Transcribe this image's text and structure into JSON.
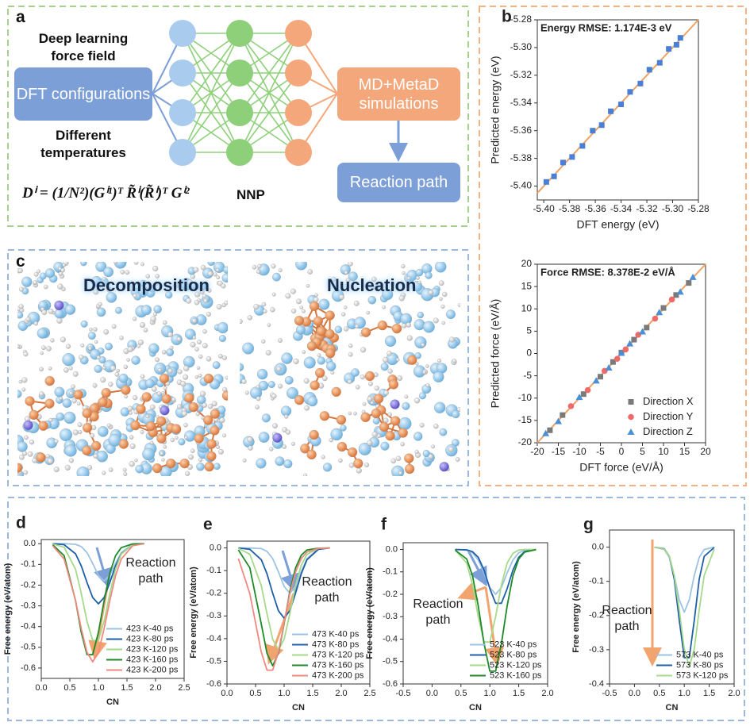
{
  "panel_a": {
    "label": "a",
    "title": "Deep learning force field",
    "input": "DFT configurations",
    "condition": "Different temperatures",
    "simulation": "MD+MetaD simulations",
    "output": "Reaction path",
    "formula": "Dⁱ = (1/N²)(Gⁱ¹)ᵀ R̃ⁱ(R̃ⁱ)ᵀ Gⁱ²",
    "model": "NNP"
  },
  "panel_c": {
    "label": "c",
    "left": "Decomposition",
    "right": "Nucleation"
  },
  "chart_data": [
    {
      "type": "scatter",
      "panel_label": "b",
      "title": "Energy RMSE: 1.174E-3 eV",
      "x_label": "DFT energy (eV)",
      "y_label": "Predicted energy (eV)",
      "xlim": [
        -5.405,
        -5.28
      ],
      "ylim": [
        -5.41,
        -5.28
      ],
      "xticks": [
        {
          "value": -5.4,
          "label": "-5.40"
        },
        -5.38,
        -5.36,
        -5.34,
        -5.32,
        {
          "value": -5.3,
          "label": "-5.30"
        },
        -5.28
      ],
      "yticks": [
        {
          "value": -5.4,
          "label": "-5.40"
        },
        -5.38,
        -5.36,
        -5.34,
        -5.32,
        {
          "value": -5.3,
          "label": "-5.30"
        },
        -5.28
      ],
      "diagonal": true,
      "diagonal_color": "#f0a060",
      "series": [
        {
          "color": "#4a7fd6",
          "marker": "square",
          "x": [
            -5.398,
            -5.392,
            -5.385,
            -5.378,
            -5.37,
            -5.362,
            -5.355,
            -5.348,
            -5.34,
            -5.333,
            -5.325,
            -5.318,
            -5.31,
            -5.303,
            -5.297,
            -5.294
          ],
          "values": [
            -5.397,
            -5.393,
            -5.383,
            -5.379,
            -5.371,
            -5.36,
            -5.356,
            -5.346,
            -5.341,
            -5.332,
            -5.326,
            -5.316,
            -5.311,
            -5.301,
            -5.298,
            -5.293
          ]
        }
      ]
    },
    {
      "type": "scatter",
      "title": "Force RMSE: 8.378E-2 eV/Å",
      "x_label": "DFT force (eV/Å)",
      "y_label": "Predicted force (eV/Å)",
      "xlim": [
        -20,
        20
      ],
      "ylim": [
        -20,
        20
      ],
      "xticks": [
        -20,
        -15,
        -10,
        -5,
        0,
        5,
        10,
        15,
        20
      ],
      "yticks": [
        -20,
        -15,
        -10,
        -5,
        0,
        5,
        10,
        15,
        20
      ],
      "diagonal": true,
      "diagonal_color": "#f0a060",
      "legend": "lower right",
      "series": [
        {
          "name": "Direction X",
          "color": "#7a7a7a",
          "marker": "square",
          "x": [
            -17,
            -14,
            -9,
            -5,
            -2,
            0,
            3,
            6,
            10,
            13,
            16
          ],
          "values": [
            -17.2,
            -13.8,
            -9.1,
            -5.2,
            -1.9,
            0.2,
            3.1,
            5.8,
            10.2,
            13.1,
            15.8
          ]
        },
        {
          "name": "Direction Y",
          "color": "#f06a6a",
          "marker": "circle",
          "x": [
            -12,
            -8,
            -4,
            -1,
            1,
            4,
            8,
            12
          ],
          "values": [
            -11.8,
            -8.2,
            -3.9,
            -1.2,
            0.9,
            4.2,
            7.8,
            12.1
          ]
        },
        {
          "name": "Direction Z",
          "color": "#4a90d9",
          "marker": "triangle",
          "x": [
            -18,
            -15,
            -10,
            -6,
            -3,
            0,
            2,
            5,
            9,
            14,
            17
          ],
          "values": [
            -17.9,
            -15.2,
            -9.8,
            -6.1,
            -3.2,
            0.1,
            2.2,
            4.9,
            9.2,
            13.8,
            17.1
          ]
        }
      ]
    },
    {
      "type": "line",
      "panel_label": "d",
      "x_label": "CN",
      "y_label": "Free energy (eV/atom)",
      "annotation": "Reaction path",
      "legend": "lower right",
      "xlim": [
        0,
        2.5
      ],
      "ylim": [
        -0.65,
        0.02
      ],
      "xticks": [
        {
          "value": 0,
          "label": "0.0"
        },
        0.5,
        {
          "value": 1,
          "label": "1.0"
        },
        1.5,
        {
          "value": 2,
          "label": "2.0"
        },
        2.5
      ],
      "yticks": [
        {
          "value": 0,
          "label": "0.0"
        },
        -0.1,
        -0.2,
        -0.3,
        -0.4,
        -0.5,
        -0.6
      ],
      "x": [
        0.2,
        0.4,
        0.6,
        0.7,
        0.8,
        0.9,
        1.0,
        1.1,
        1.2,
        1.3,
        1.4,
        1.6,
        1.8
      ],
      "series": [
        {
          "name": "423 K-40 ps",
          "color": "#9cc3e4",
          "values": [
            0,
            0,
            -0.003,
            -0.014,
            -0.043,
            -0.095,
            -0.153,
            -0.18,
            -0.153,
            -0.095,
            -0.043,
            -0.003,
            0
          ]
        },
        {
          "name": "423 K-80 ps",
          "color": "#1f5fa8",
          "values": [
            0,
            -0.005,
            -0.049,
            -0.107,
            -0.187,
            -0.26,
            -0.29,
            -0.26,
            -0.187,
            -0.107,
            -0.049,
            -0.005,
            0
          ]
        },
        {
          "name": "423 K-120 ps",
          "color": "#a6d98a",
          "values": [
            -0.001,
            -0.017,
            -0.123,
            -0.24,
            -0.374,
            -0.467,
            -0.467,
            -0.374,
            -0.24,
            -0.123,
            -0.05,
            -0.004,
            0
          ]
        },
        {
          "name": "423 K-160 ps",
          "color": "#1e8a2a",
          "values": [
            -0.005,
            -0.058,
            -0.275,
            -0.428,
            -0.535,
            -0.535,
            -0.428,
            -0.275,
            -0.141,
            -0.058,
            -0.019,
            -0.001,
            0
          ]
        },
        {
          "name": "423 K-200 ps",
          "color": "#f08a80",
          "values": [
            -0.01,
            -0.074,
            -0.274,
            -0.41,
            -0.524,
            -0.57,
            -0.524,
            -0.41,
            -0.274,
            -0.154,
            -0.074,
            -0.01,
            0
          ]
        }
      ]
    },
    {
      "type": "line",
      "panel_label": "e",
      "x_label": "CN",
      "y_label": "Free energy (eV/atom)",
      "annotation": "Reaction path",
      "legend": "lower right",
      "xlim": [
        0,
        2.5
      ],
      "ylim": [
        -0.6,
        0.03
      ],
      "xticks": [
        {
          "value": 0,
          "label": "0.0"
        },
        0.5,
        {
          "value": 1,
          "label": "1.0"
        },
        1.5,
        {
          "value": 2,
          "label": "2.0"
        },
        2.5
      ],
      "yticks": [
        {
          "value": 0,
          "label": "0.0"
        },
        -0.1,
        -0.2,
        -0.3,
        -0.4,
        -0.5,
        -0.6
      ],
      "x": [
        0.2,
        0.4,
        0.6,
        0.7,
        0.8,
        0.9,
        1.0,
        1.1,
        1.2,
        1.3,
        1.4,
        1.6,
        1.8
      ],
      "series": [
        {
          "name": "473 K-40 ps",
          "color": "#9cc3e4",
          "values": [
            0,
            0,
            -0.003,
            -0.015,
            -0.047,
            -0.105,
            -0.17,
            -0.2,
            -0.17,
            -0.105,
            -0.047,
            -0.003,
            0
          ]
        },
        {
          "name": "473 K-80 ps",
          "color": "#1f5fa8",
          "values": [
            0,
            -0.006,
            -0.052,
            -0.114,
            -0.2,
            -0.277,
            -0.31,
            -0.277,
            -0.2,
            -0.114,
            -0.052,
            -0.006,
            0
          ]
        },
        {
          "name": "473 K-120 ps",
          "color": "#a6d98a",
          "values": [
            -0.002,
            -0.028,
            -0.166,
            -0.29,
            -0.403,
            -0.45,
            -0.403,
            -0.29,
            -0.166,
            -0.076,
            -0.028,
            -0.002,
            0
          ]
        },
        {
          "name": "473 K-160 ps",
          "color": "#1e8a2a",
          "values": [
            -0.009,
            -0.088,
            -0.335,
            -0.465,
            -0.52,
            -0.465,
            -0.335,
            -0.191,
            -0.088,
            -0.032,
            -0.009,
            -0.001,
            0
          ]
        },
        {
          "name": "473 K-200 ps",
          "color": "#f08a80",
          "values": [
            -0.047,
            -0.202,
            -0.459,
            -0.539,
            -0.539,
            -0.459,
            -0.33,
            -0.202,
            -0.106,
            -0.047,
            -0.018,
            -0.002,
            0
          ]
        }
      ]
    },
    {
      "type": "line",
      "panel_label": "f",
      "x_label": "CN",
      "y_label": "Free energy (eV/atom)",
      "annotation": "Reaction path",
      "legend": "lower right",
      "xlim": [
        -0.5,
        2.0
      ],
      "ylim": [
        -0.6,
        0.03
      ],
      "xticks": [
        -0.5,
        {
          "value": 0,
          "label": "0.0"
        },
        0.5,
        {
          "value": 1,
          "label": "1.0"
        },
        1.5,
        {
          "value": 2,
          "label": "2.0"
        }
      ],
      "yticks": [
        {
          "value": 0,
          "label": "0.0"
        },
        -0.1,
        -0.2,
        -0.3,
        -0.4,
        -0.5,
        -0.6
      ],
      "x": [
        0.4,
        0.6,
        0.7,
        0.8,
        0.9,
        1.0,
        1.1,
        1.2,
        1.3,
        1.4,
        1.5,
        1.6,
        1.8
      ],
      "series": [
        {
          "name": "523 K-40 ps",
          "color": "#9cc3e4",
          "values": [
            0,
            -0.004,
            -0.015,
            -0.047,
            -0.105,
            -0.17,
            -0.2,
            -0.17,
            -0.105,
            -0.047,
            -0.015,
            -0.004,
            0
          ]
        },
        {
          "name": "523 K-80 ps",
          "color": "#1f5fa8",
          "values": [
            0,
            -0.002,
            -0.01,
            -0.035,
            -0.092,
            -0.175,
            -0.24,
            -0.24,
            -0.175,
            -0.092,
            -0.035,
            -0.01,
            0
          ]
        },
        {
          "name": "523 K-120 ps",
          "color": "#a6d98a",
          "values": [
            -0.003,
            -0.061,
            -0.158,
            -0.3,
            -0.413,
            -0.413,
            -0.3,
            -0.158,
            -0.061,
            -0.017,
            -0.003,
            0,
            0
          ]
        },
        {
          "name": "523 K-160 ps",
          "color": "#1e8a2a",
          "values": [
            -0.003,
            -0.043,
            -0.118,
            -0.252,
            -0.42,
            -0.543,
            -0.543,
            -0.42,
            -0.252,
            -0.118,
            -0.043,
            -0.012,
            -0.001
          ]
        }
      ]
    },
    {
      "type": "line",
      "panel_label": "g",
      "x_label": "CN",
      "y_label": "Free energy (eV/atom)",
      "annotation": "Reaction path",
      "legend": "lower right",
      "xlim": [
        -0.5,
        2.0
      ],
      "ylim": [
        -0.4,
        0.05
      ],
      "xticks": [
        -0.5,
        {
          "value": 0,
          "label": "0.0"
        },
        0.5,
        {
          "value": 1,
          "label": "1.0"
        },
        1.5,
        {
          "value": 2,
          "label": "2.0"
        }
      ],
      "yticks": [
        {
          "value": 0,
          "label": "0.0"
        },
        -0.1,
        -0.2,
        -0.3,
        -0.4
      ],
      "x": [
        0.4,
        0.6,
        0.7,
        0.8,
        0.9,
        1.0,
        1.1,
        1.2,
        1.3,
        1.4,
        1.6
      ],
      "series": [
        {
          "name": "573 K-40 ps",
          "color": "#9cc3e4",
          "values": [
            0,
            -0.007,
            -0.03,
            -0.083,
            -0.154,
            -0.19,
            -0.154,
            -0.083,
            -0.03,
            -0.007,
            0
          ]
        },
        {
          "name": "573 K-80 ps",
          "color": "#1f5fa8",
          "values": [
            0,
            -0.005,
            -0.027,
            -0.094,
            -0.214,
            -0.323,
            -0.323,
            -0.214,
            -0.094,
            -0.027,
            -0.001
          ]
        },
        {
          "name": "573 K-120 ps",
          "color": "#a6d98a",
          "values": [
            0,
            -0.006,
            -0.027,
            -0.083,
            -0.184,
            -0.298,
            -0.35,
            -0.298,
            -0.184,
            -0.083,
            -0.006
          ]
        }
      ]
    }
  ]
}
